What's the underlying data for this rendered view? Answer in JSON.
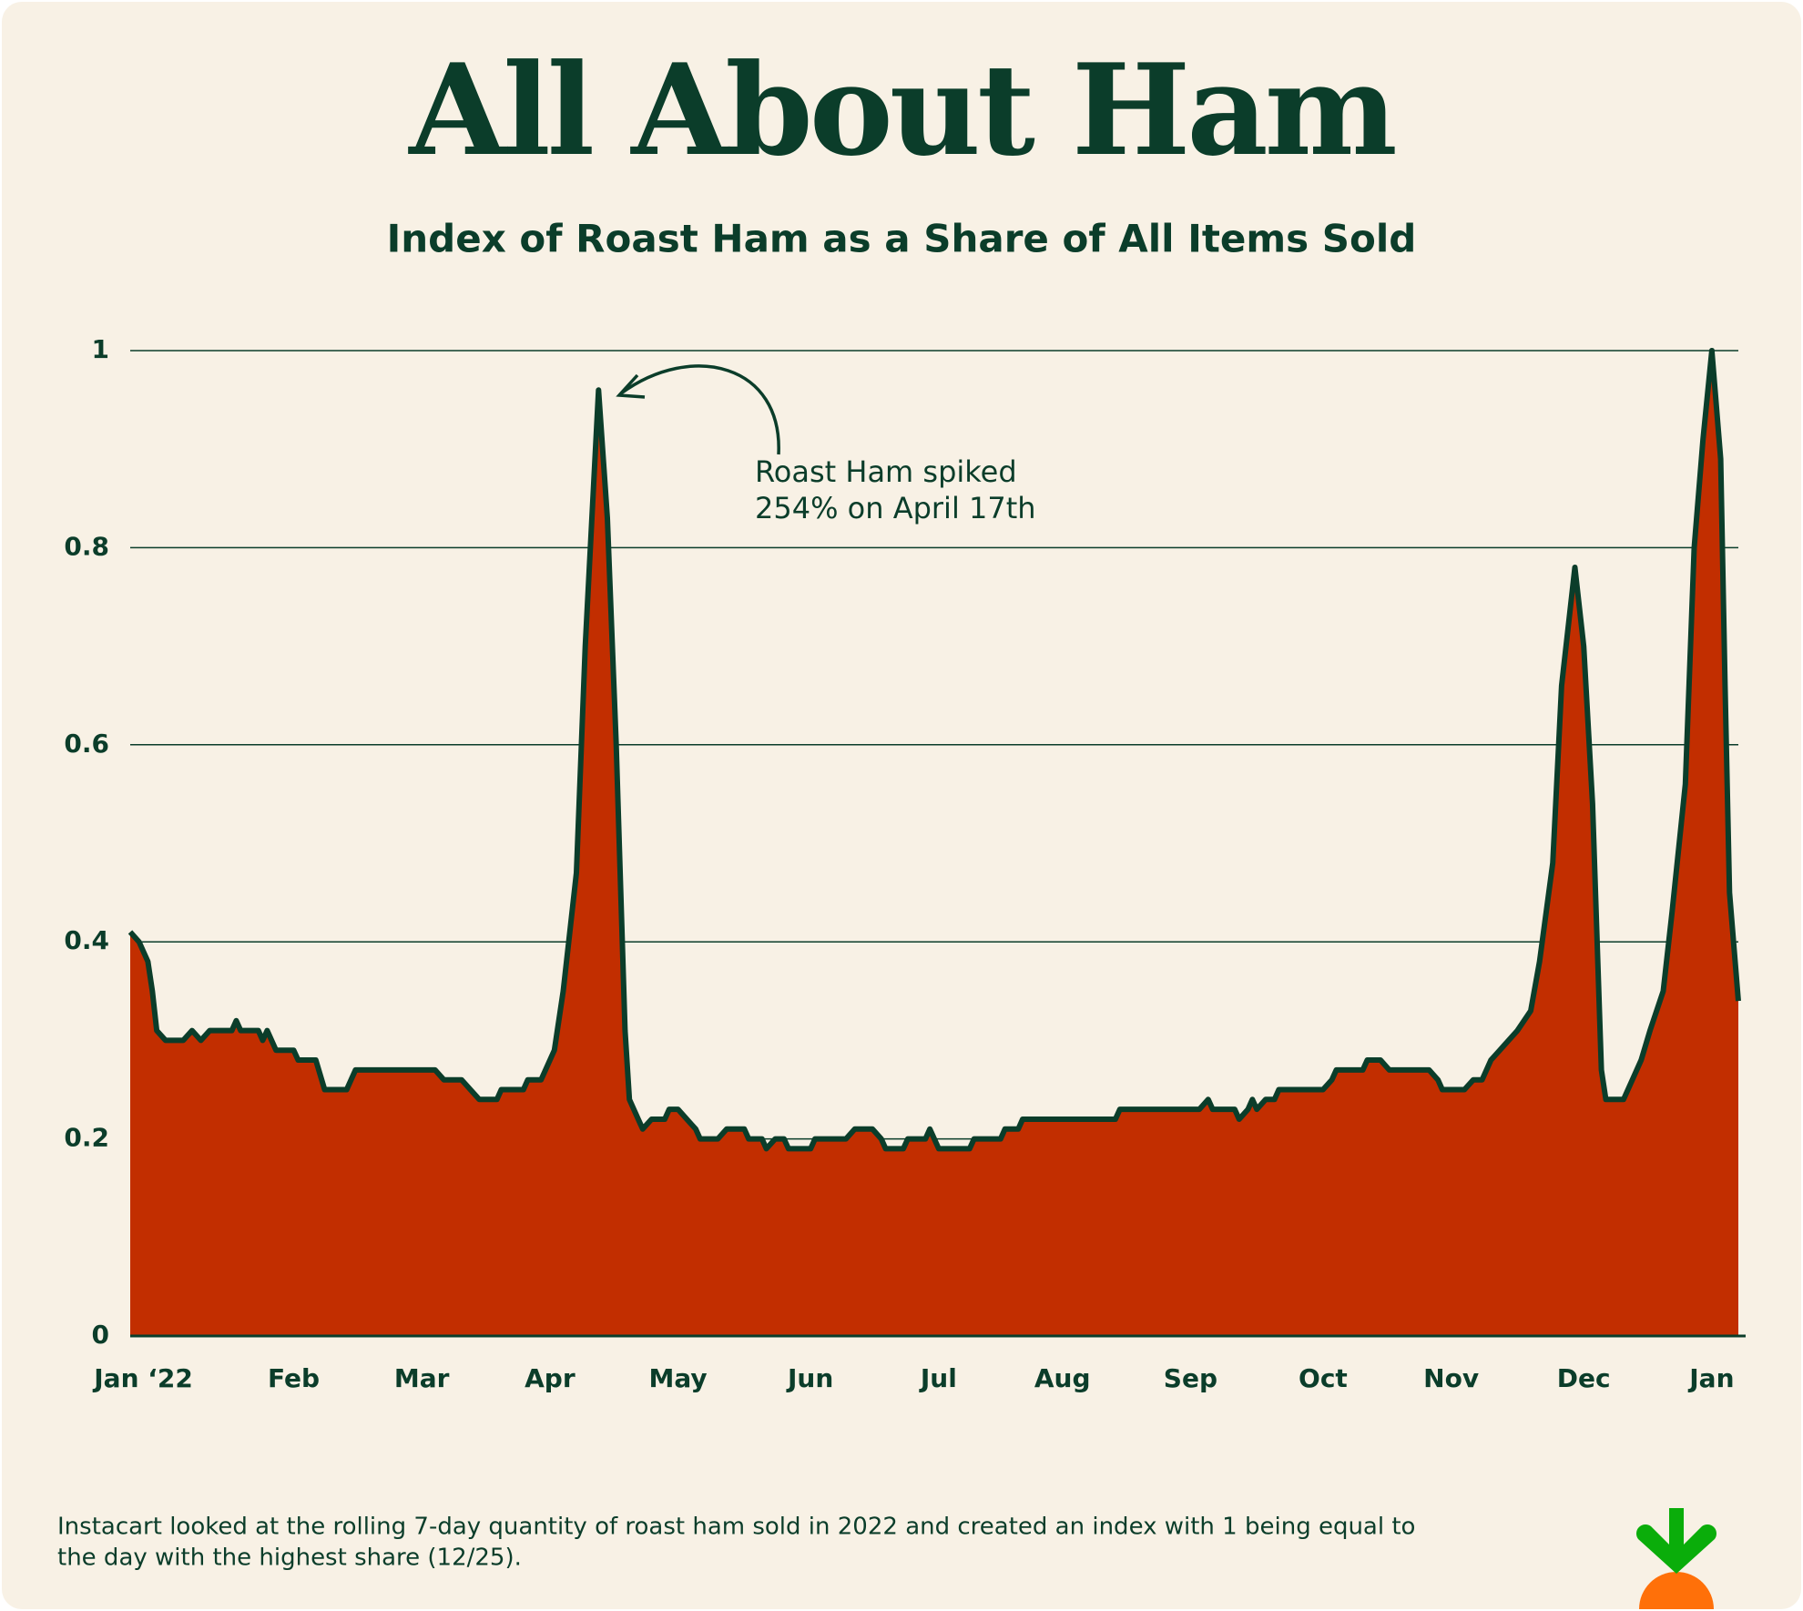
{
  "chart_data": {
    "type": "area",
    "title": "All About Ham",
    "subtitle": "Index of Roast Ham as a Share of All Items Sold",
    "annotation": [
      "Roast Ham spiked",
      "254% on April 17th"
    ],
    "footnote": [
      "Instacart looked at the rolling 7-day quantity of roast ham sold in 2022 and created an index with 1 being equal to",
      "the day with the highest share (12/25)."
    ],
    "x": [
      0,
      2,
      4,
      5,
      6,
      8,
      12,
      14,
      16,
      18,
      23,
      24,
      25,
      29,
      30,
      31,
      33,
      37,
      38,
      42,
      44,
      49,
      51,
      69,
      71,
      75,
      77,
      79,
      83,
      84,
      89,
      90,
      93,
      96,
      98,
      101,
      103,
      106,
      108,
      110,
      112,
      113,
      115,
      116,
      118,
      121,
      122,
      124,
      126,
      128,
      129,
      133,
      135,
      139,
      140,
      143,
      144,
      146,
      148,
      149,
      154,
      155,
      162,
      164,
      168,
      170,
      171,
      175,
      176,
      180,
      181,
      183,
      190,
      191,
      197,
      198,
      201,
      202,
      223,
      224,
      242,
      244,
      245,
      250,
      251,
      253,
      254,
      255,
      257,
      259,
      260,
      270,
      272,
      273,
      279,
      280,
      283,
      285,
      294,
      296,
      297,
      302,
      304,
      306,
      308,
      310,
      314,
      317,
      319,
      322,
      324,
      327,
      329,
      331,
      333,
      334,
      338,
      340,
      342,
      344,
      347,
      349,
      352,
      354,
      356,
      358,
      360,
      361,
      362,
      364
    ],
    "values": [
      0.41,
      0.4,
      0.38,
      0.35,
      0.31,
      0.3,
      0.3,
      0.31,
      0.3,
      0.31,
      0.31,
      0.32,
      0.31,
      0.31,
      0.3,
      0.31,
      0.29,
      0.29,
      0.28,
      0.28,
      0.25,
      0.25,
      0.27,
      0.27,
      0.26,
      0.26,
      0.25,
      0.24,
      0.24,
      0.25,
      0.25,
      0.26,
      0.26,
      0.29,
      0.35,
      0.47,
      0.7,
      0.96,
      0.83,
      0.6,
      0.31,
      0.24,
      0.22,
      0.21,
      0.22,
      0.22,
      0.23,
      0.23,
      0.22,
      0.21,
      0.2,
      0.2,
      0.21,
      0.21,
      0.2,
      0.2,
      0.19,
      0.2,
      0.2,
      0.19,
      0.19,
      0.2,
      0.2,
      0.21,
      0.21,
      0.2,
      0.19,
      0.19,
      0.2,
      0.2,
      0.21,
      0.19,
      0.19,
      0.2,
      0.2,
      0.21,
      0.21,
      0.22,
      0.22,
      0.23,
      0.23,
      0.24,
      0.23,
      0.23,
      0.22,
      0.23,
      0.24,
      0.23,
      0.24,
      0.24,
      0.25,
      0.25,
      0.26,
      0.27,
      0.27,
      0.28,
      0.28,
      0.27,
      0.27,
      0.26,
      0.25,
      0.25,
      0.26,
      0.26,
      0.28,
      0.29,
      0.31,
      0.33,
      0.38,
      0.48,
      0.66,
      0.78,
      0.7,
      0.54,
      0.27,
      0.24,
      0.24,
      0.26,
      0.28,
      0.31,
      0.35,
      0.43,
      0.56,
      0.8,
      0.91,
      1.0,
      0.89,
      0.66,
      0.45,
      0.34
    ],
    "color": "#c22e00",
    "line_color": "#0b3d2a",
    "xlim": [
      0,
      364
    ],
    "xticks": [
      {
        "value": 3,
        "label": "Jan ‘22"
      },
      {
        "value": 37,
        "label": "Feb"
      },
      {
        "value": 66,
        "label": "Mar"
      },
      {
        "value": 95,
        "label": "Apr"
      },
      {
        "value": 124,
        "label": "May"
      },
      {
        "value": 154,
        "label": "Jun"
      },
      {
        "value": 183,
        "label": "Jul"
      },
      {
        "value": 211,
        "label": "Aug"
      },
      {
        "value": 240,
        "label": "Sep"
      },
      {
        "value": 270,
        "label": "Oct"
      },
      {
        "value": 299,
        "label": "Nov"
      },
      {
        "value": 329,
        "label": "Dec"
      },
      {
        "value": 358,
        "label": "Jan"
      }
    ],
    "ylim": [
      0,
      1
    ],
    "yticks": [
      0,
      0.2,
      0.4,
      0.6,
      0.8,
      1
    ],
    "grid": true
  }
}
